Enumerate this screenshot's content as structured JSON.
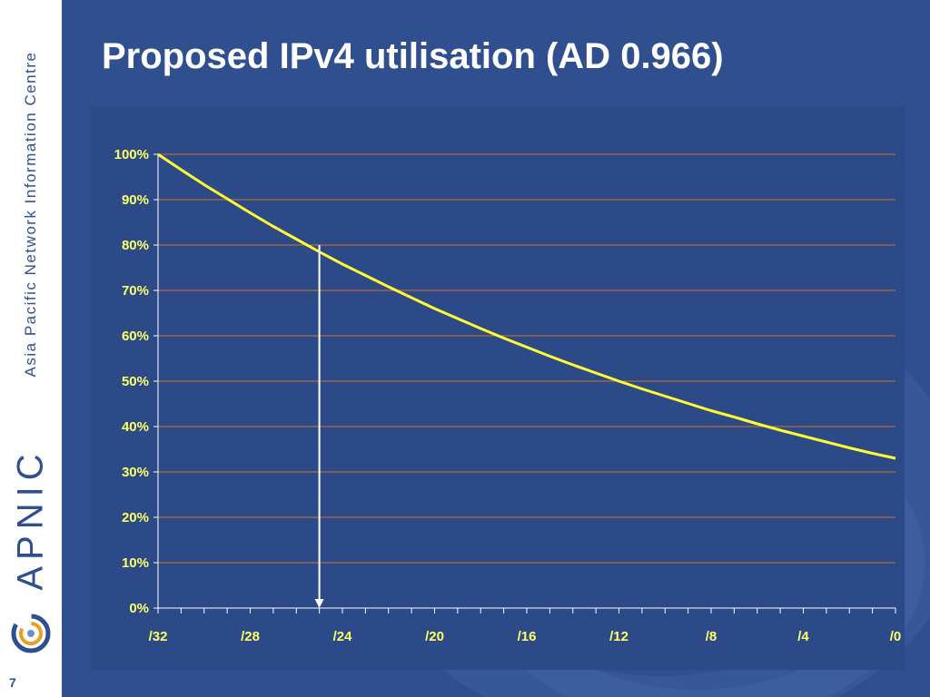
{
  "slide": {
    "title": "Proposed IPv4 utilisation (AD 0.966)",
    "page_number": "7",
    "sidebar_text": "Asia Pacific Network Information Centre",
    "brand": "APNIC"
  },
  "colors": {
    "background": "#2f4f8f",
    "plot_area": "#2c4a87",
    "gridline": "#d0732a",
    "series_line": "#ffff33",
    "tick_text": "#ffff66",
    "marker_arrow": "#ffffff"
  },
  "chart_data": {
    "type": "line",
    "title": "",
    "xlabel": "",
    "ylabel": "",
    "x_ticks": [
      "/32",
      "/28",
      "/24",
      "/20",
      "/16",
      "/12",
      "/8",
      "/4",
      "/0"
    ],
    "y_ticks": [
      "0%",
      "10%",
      "20%",
      "30%",
      "40%",
      "50%",
      "60%",
      "70%",
      "80%",
      "90%",
      "100%"
    ],
    "xlim": [
      32,
      0
    ],
    "ylim": [
      0,
      100
    ],
    "grid": true,
    "legend": "none",
    "series": [
      {
        "x": [
          32,
          31,
          30,
          29,
          28,
          27,
          26,
          25,
          24,
          23,
          22,
          21,
          20,
          19,
          18,
          17,
          16,
          15,
          14,
          13,
          12,
          11,
          10,
          9,
          8,
          7,
          6,
          5,
          4,
          3,
          2,
          1,
          0
        ],
        "values": [
          100,
          96.6,
          93.3,
          90.2,
          87.1,
          84.1,
          81.3,
          78.5,
          75.8,
          73.3,
          70.8,
          68.4,
          66.0,
          63.8,
          61.6,
          59.5,
          57.5,
          55.5,
          53.6,
          51.8,
          50.0,
          48.3,
          46.7,
          45.1,
          43.5,
          42.1,
          40.6,
          39.2,
          37.9,
          36.6,
          35.3,
          34.1,
          33.0
        ]
      }
    ],
    "annotation": {
      "type": "arrow-down",
      "x": 25,
      "from_y": 80,
      "to_y": 0
    }
  }
}
